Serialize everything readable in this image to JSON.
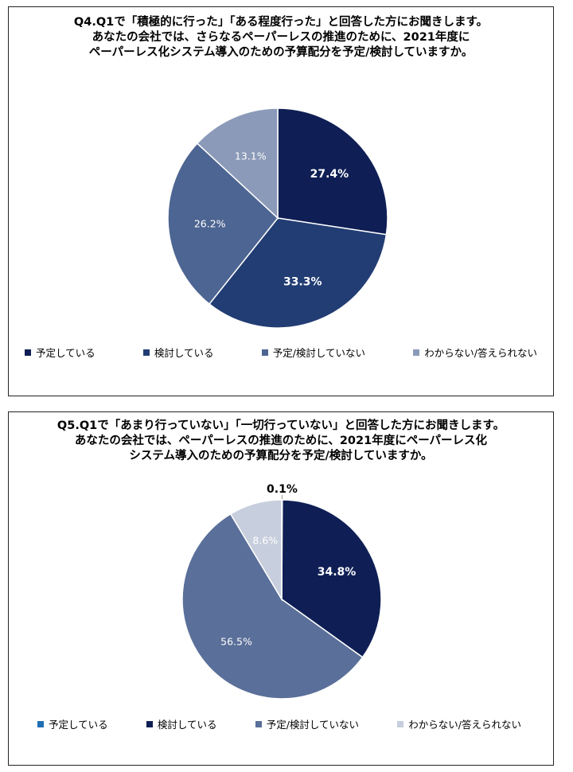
{
  "chart_data": [
    {
      "type": "pie",
      "id": "q4",
      "title_lines": [
        "Q4.Q1で「積極的に行った」「ある程度行った」と回答した方にお聞きします。",
        "あなたの会社では、さらなるペーパーレスの推進のために、2021年度に",
        "ペーパーレス化システム導入のための予算配分を予定/検討していますか。"
      ],
      "slices": [
        {
          "label": "予定している",
          "value": 27.4,
          "display": "27.4%",
          "color": "#0f1f55",
          "label_bold": true
        },
        {
          "label": "検討している",
          "value": 33.3,
          "display": "33.3%",
          "color": "#223d73",
          "label_bold": true
        },
        {
          "label": "予定/検討していない",
          "value": 26.2,
          "display": "26.2%",
          "color": "#4d6592",
          "label_bold": false
        },
        {
          "label": "わからない/答えられない",
          "value": 13.1,
          "display": "13.1%",
          "color": "#8b9ab8",
          "label_bold": false
        }
      ],
      "legend_position": "bottom"
    },
    {
      "type": "pie",
      "id": "q5",
      "title_lines": [
        "Q5.Q1で「あまり行っていない」「一切行っていない」と回答した方にお聞きします。",
        "あなたの会社では、ペーパーレスの推進のために、2021年度にペーパーレス化",
        "システム導入のための予算配分を予定/検討していますか。"
      ],
      "slices": [
        {
          "label": "予定している",
          "value": 0.1,
          "display": "0.1%",
          "color": "#1f6fb5",
          "label_bold": true
        },
        {
          "label": "検討している",
          "value": 34.8,
          "display": "34.8%",
          "color": "#0f1f55",
          "label_bold": true
        },
        {
          "label": "予定/検討していない",
          "value": 56.5,
          "display": "56.5%",
          "color": "#5a6f99",
          "label_bold": false
        },
        {
          "label": "わからない/答えられない",
          "value": 8.6,
          "display": "8.6%",
          "color": "#c7cedd",
          "label_bold": false
        }
      ],
      "legend_position": "bottom"
    }
  ]
}
